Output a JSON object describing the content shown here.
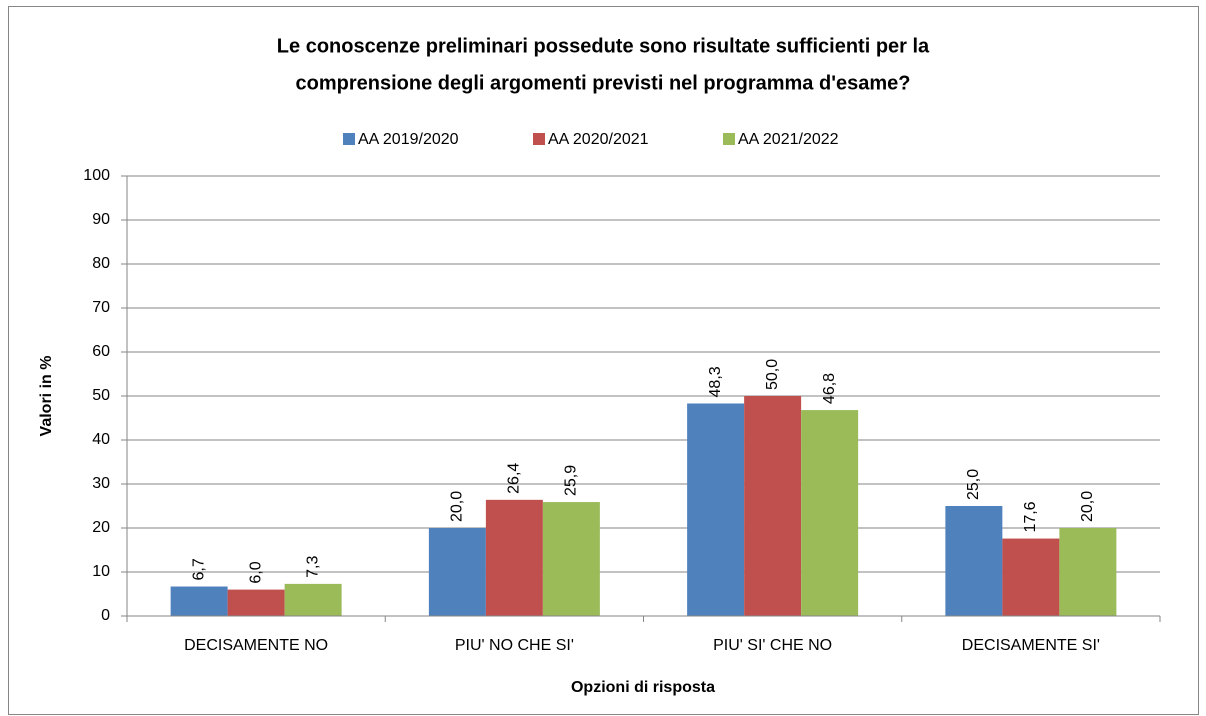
{
  "chart_data": {
    "type": "bar",
    "title": [
      "Le conoscenze preliminari possedute sono risultate sufficienti per la",
      "comprensione degli argomenti previsti nel programma d'esame?"
    ],
    "xlabel": "Opzioni di risposta",
    "ylabel": "Valori in %",
    "categories": [
      "DECISAMENTE NO",
      "PIU' NO CHE SI'",
      "PIU' SI' CHE NO",
      "DECISAMENTE SI'"
    ],
    "series": [
      {
        "name": "AA 2019/2020",
        "color": "#4f81bd",
        "values": [
          6.7,
          20,
          48.3,
          25
        ],
        "value_labels": [
          "6,7",
          "20,0",
          "48,3",
          "25,0"
        ]
      },
      {
        "name": "AA 2020/2021",
        "color": "#c0504d",
        "values": [
          6,
          26.4,
          50,
          17.6
        ],
        "value_labels": [
          "6,0",
          "26,4",
          "50,0",
          "17,6"
        ]
      },
      {
        "name": "AA 2021/2022",
        "color": "#9bbb59",
        "values": [
          7.3,
          25.9,
          46.8,
          20
        ],
        "value_labels": [
          "7,3",
          "25,9",
          "46,8",
          "20,0"
        ]
      }
    ],
    "ylim": [
      0,
      100
    ],
    "yticks": [
      0,
      10,
      20,
      30,
      40,
      50,
      60,
      70,
      80,
      90,
      100
    ],
    "grid": true,
    "legend": "top"
  }
}
